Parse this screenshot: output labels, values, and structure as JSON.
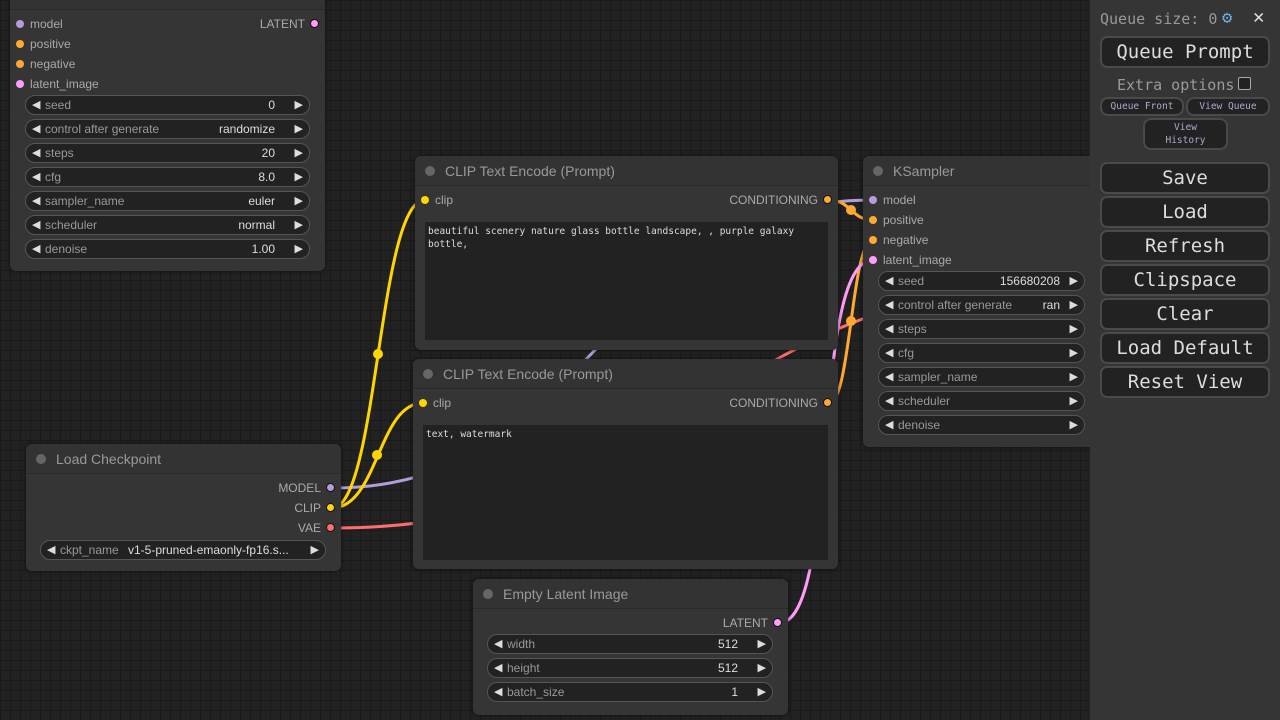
{
  "colors": {
    "model": "#b39ddb",
    "conditioning": "#ffa931",
    "latent": "#ff9cf9",
    "clip": "#ffd500",
    "vae": "#ff6e6e"
  },
  "ksampler_top": {
    "inputs": [
      {
        "label": "model",
        "type": "model"
      },
      {
        "label": "positive",
        "type": "conditioning"
      },
      {
        "label": "negative",
        "type": "conditioning"
      },
      {
        "label": "latent_image",
        "type": "latent"
      }
    ],
    "output": {
      "label": "LATENT",
      "type": "latent"
    },
    "widgets": [
      {
        "label": "seed",
        "value": "0"
      },
      {
        "label": "control after generate",
        "value": "randomize"
      },
      {
        "label": "steps",
        "value": "20"
      },
      {
        "label": "cfg",
        "value": "8.0"
      },
      {
        "label": "sampler_name",
        "value": "euler"
      },
      {
        "label": "scheduler",
        "value": "normal"
      },
      {
        "label": "denoise",
        "value": "1.00"
      }
    ]
  },
  "clip_positive": {
    "title": "CLIP Text Encode (Prompt)",
    "input": "clip",
    "output": "CONDITIONING",
    "text": "beautiful scenery nature glass bottle landscape, , purple galaxy bottle,"
  },
  "clip_negative": {
    "title": "CLIP Text Encode (Prompt)",
    "input": "clip",
    "output": "CONDITIONING",
    "text": "text, watermark"
  },
  "ksampler": {
    "title": "KSampler",
    "inputs": [
      {
        "label": "model",
        "type": "model"
      },
      {
        "label": "positive",
        "type": "conditioning"
      },
      {
        "label": "negative",
        "type": "conditioning"
      },
      {
        "label": "latent_image",
        "type": "latent"
      }
    ],
    "widgets": [
      {
        "label": "seed",
        "value": "156680208"
      },
      {
        "label": "control after generate",
        "value": "ran"
      },
      {
        "label": "steps",
        "value": ""
      },
      {
        "label": "cfg",
        "value": ""
      },
      {
        "label": "sampler_name",
        "value": ""
      },
      {
        "label": "scheduler",
        "value": ""
      },
      {
        "label": "denoise",
        "value": ""
      }
    ]
  },
  "load_checkpoint": {
    "title": "Load Checkpoint",
    "outputs": [
      {
        "label": "MODEL",
        "type": "model"
      },
      {
        "label": "CLIP",
        "type": "clip"
      },
      {
        "label": "VAE",
        "type": "vae"
      }
    ],
    "widget": {
      "label": "ckpt_name",
      "value": "v1-5-pruned-emaonly-fp16.s..."
    }
  },
  "empty_latent": {
    "title": "Empty Latent Image",
    "output": {
      "label": "LATENT",
      "type": "latent"
    },
    "widgets": [
      {
        "label": "width",
        "value": "512"
      },
      {
        "label": "height",
        "value": "512"
      },
      {
        "label": "batch_size",
        "value": "1"
      }
    ]
  },
  "panel": {
    "queue_size_label": "Queue size: 0",
    "settings_icon": "gear-icon",
    "close_icon": "close-icon",
    "close_glyph": "✕",
    "queue_prompt": "Queue Prompt",
    "extra_options": "Extra options",
    "extra_options_checked": false,
    "queue_front": "Queue Front",
    "view_queue": "View Queue",
    "view_history": "View History",
    "buttons": [
      "Save",
      "Load",
      "Refresh",
      "Clipspace",
      "Clear",
      "Load Default",
      "Reset View"
    ]
  }
}
